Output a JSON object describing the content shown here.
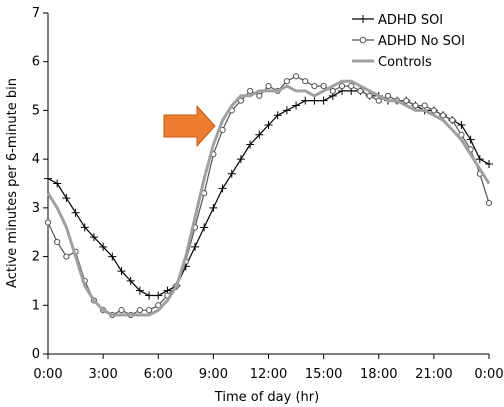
{
  "chart_data": {
    "type": "line",
    "title": "",
    "xlabel": "Time of day (hr)",
    "ylabel": "Active minutes per 6-minute bin",
    "x_tick_labels": [
      "0:00",
      "3:00",
      "6:00",
      "9:00",
      "12:00",
      "15:00",
      "18:00",
      "21:00",
      "0:00"
    ],
    "y_ticks": [
      0,
      1,
      2,
      3,
      4,
      5,
      6,
      7
    ],
    "xlim": [
      0,
      24
    ],
    "ylim": [
      0,
      7
    ],
    "grid": false,
    "legend_position": "top-right",
    "annotation": "orange arrow pointing right at about 9:00, y ≈ 4.7",
    "series": [
      {
        "name": "ADHD SOI",
        "marker": "plus",
        "color": "#000000",
        "x": [
          0,
          0.5,
          1,
          1.5,
          2,
          2.5,
          3,
          3.5,
          4,
          4.5,
          5,
          5.5,
          6,
          6.5,
          7,
          7.5,
          8,
          8.5,
          9,
          9.5,
          10,
          10.5,
          11,
          11.5,
          12,
          12.5,
          13,
          13.5,
          14,
          14.5,
          15,
          15.5,
          16,
          16.5,
          17,
          17.5,
          18,
          18.5,
          19,
          19.5,
          20,
          20.5,
          21,
          21.5,
          22,
          22.5,
          23,
          23.5,
          24
        ],
        "y": [
          3.6,
          3.5,
          3.2,
          2.9,
          2.6,
          2.4,
          2.2,
          2.0,
          1.7,
          1.5,
          1.3,
          1.2,
          1.2,
          1.3,
          1.4,
          1.8,
          2.2,
          2.6,
          3.0,
          3.4,
          3.7,
          4.0,
          4.3,
          4.5,
          4.7,
          4.9,
          5.0,
          5.1,
          5.2,
          5.2,
          5.2,
          5.3,
          5.4,
          5.4,
          5.4,
          5.3,
          5.3,
          5.2,
          5.2,
          5.2,
          5.1,
          5.0,
          5.0,
          4.9,
          4.8,
          4.7,
          4.4,
          4.0,
          3.9
        ]
      },
      {
        "name": "ADHD No SOI",
        "marker": "circle",
        "color": "#555555",
        "x": [
          0,
          0.5,
          1,
          1.5,
          2,
          2.5,
          3,
          3.5,
          4,
          4.5,
          5,
          5.5,
          6,
          6.5,
          7,
          7.5,
          8,
          8.5,
          9,
          9.5,
          10,
          10.5,
          11,
          11.5,
          12,
          12.5,
          13,
          13.5,
          14,
          14.5,
          15,
          15.5,
          16,
          16.5,
          17,
          17.5,
          18,
          18.5,
          19,
          19.5,
          20,
          20.5,
          21,
          21.5,
          22,
          22.5,
          23,
          23.5,
          24
        ],
        "y": [
          2.7,
          2.3,
          2.0,
          2.1,
          1.5,
          1.1,
          0.9,
          0.8,
          0.9,
          0.8,
          0.9,
          0.9,
          1.0,
          1.2,
          1.4,
          1.9,
          2.6,
          3.3,
          4.1,
          4.6,
          5.0,
          5.2,
          5.4,
          5.3,
          5.5,
          5.4,
          5.6,
          5.7,
          5.6,
          5.5,
          5.5,
          5.4,
          5.5,
          5.5,
          5.4,
          5.3,
          5.2,
          5.3,
          5.2,
          5.2,
          5.1,
          5.1,
          5.0,
          4.9,
          4.8,
          4.5,
          4.2,
          3.7,
          3.1
        ]
      },
      {
        "name": "Controls",
        "marker": "none",
        "color": "#a0a0a0",
        "x": [
          0,
          0.5,
          1,
          1.5,
          2,
          2.5,
          3,
          3.5,
          4,
          4.5,
          5,
          5.5,
          6,
          6.5,
          7,
          7.5,
          8,
          8.5,
          9,
          9.5,
          10,
          10.5,
          11,
          11.5,
          12,
          12.5,
          13,
          13.5,
          14,
          14.5,
          15,
          15.5,
          16,
          16.5,
          17,
          17.5,
          18,
          18.5,
          19,
          19.5,
          20,
          20.5,
          21,
          21.5,
          22,
          22.5,
          23,
          23.5,
          24
        ],
        "y": [
          3.3,
          3.0,
          2.6,
          2.0,
          1.4,
          1.1,
          0.9,
          0.8,
          0.8,
          0.8,
          0.8,
          0.8,
          0.9,
          1.1,
          1.4,
          2.0,
          2.8,
          3.6,
          4.3,
          4.8,
          5.1,
          5.3,
          5.3,
          5.4,
          5.4,
          5.4,
          5.5,
          5.4,
          5.4,
          5.3,
          5.4,
          5.5,
          5.6,
          5.6,
          5.5,
          5.4,
          5.3,
          5.2,
          5.2,
          5.1,
          5.0,
          5.0,
          4.9,
          4.8,
          4.6,
          4.4,
          4.1,
          3.8,
          3.5
        ]
      }
    ]
  }
}
